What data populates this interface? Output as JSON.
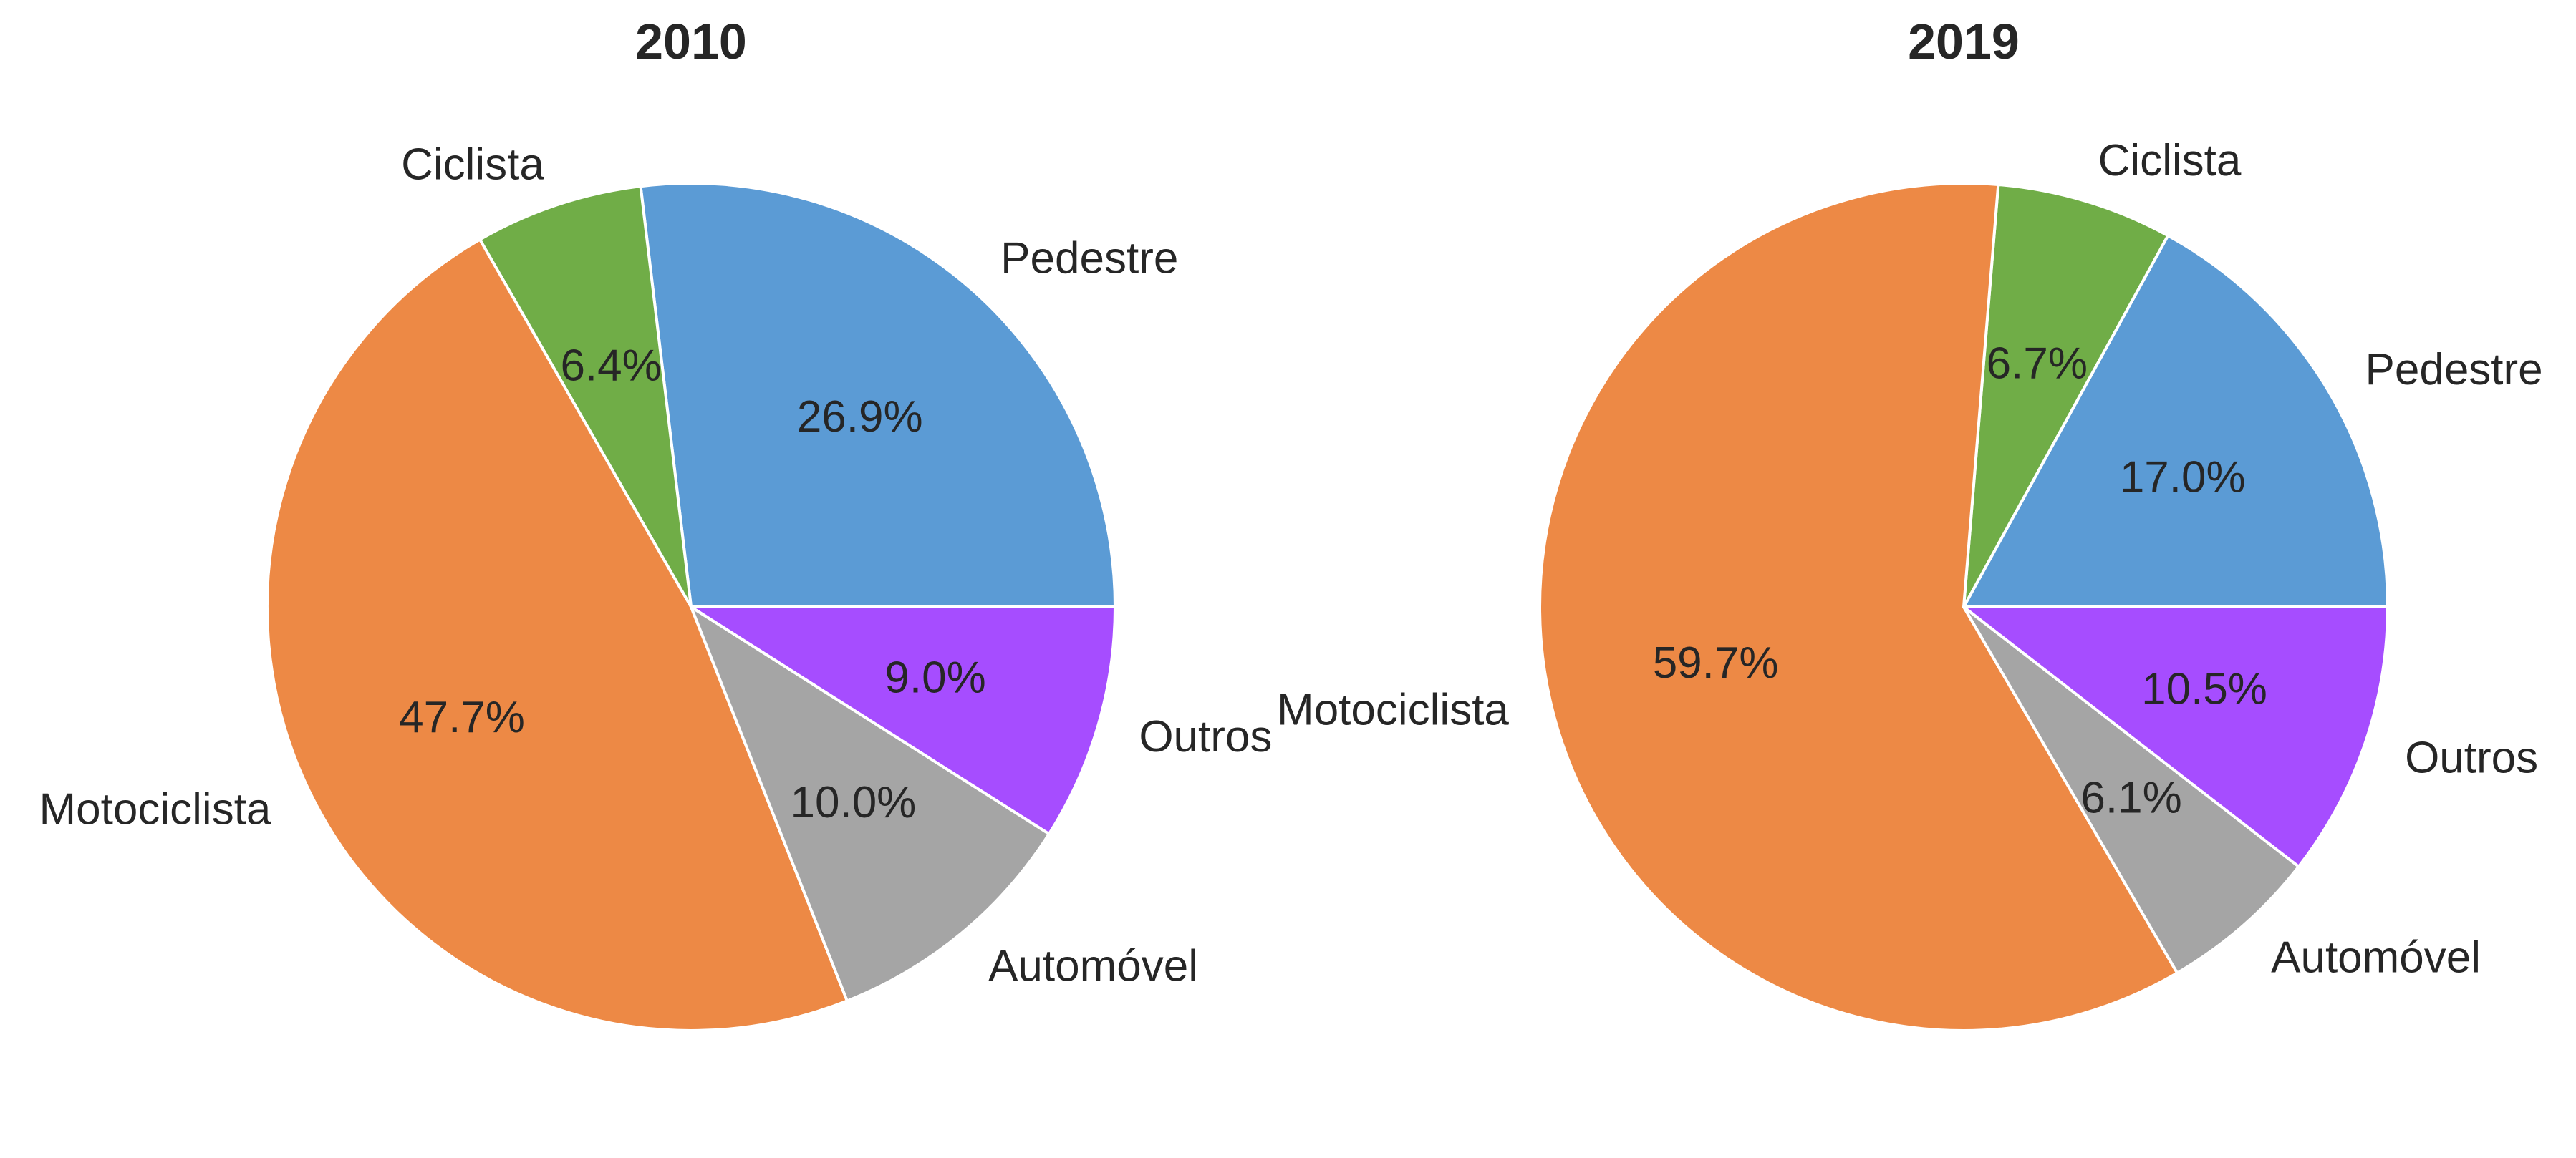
{
  "chart_data": [
    {
      "type": "pie",
      "title": "2010",
      "start_angle_deg": 0,
      "direction": "counterclockwise",
      "slices": [
        {
          "label": "Pedestre",
          "value": 26.9,
          "pct_label": "26.9%",
          "color": "#5b9bd5"
        },
        {
          "label": "Ciclista",
          "value": 6.4,
          "pct_label": "6.4%",
          "color": "#70ad47"
        },
        {
          "label": "Motociclista",
          "value": 47.7,
          "pct_label": "47.7%",
          "color": "#ed8945"
        },
        {
          "label": "Automóvel",
          "value": 10.0,
          "pct_label": "10.0%",
          "color": "#a5a5a5"
        },
        {
          "label": "Outros",
          "value": 9.0,
          "pct_label": "9.0%",
          "color": "#a64dff"
        }
      ]
    },
    {
      "type": "pie",
      "title": "2019",
      "start_angle_deg": 0,
      "direction": "counterclockwise",
      "slices": [
        {
          "label": "Pedestre",
          "value": 17.0,
          "pct_label": "17.0%",
          "color": "#5b9bd5"
        },
        {
          "label": "Ciclista",
          "value": 6.7,
          "pct_label": "6.7%",
          "color": "#70ad47"
        },
        {
          "label": "Motociclista",
          "value": 59.7,
          "pct_label": "59.7%",
          "color": "#ed8945"
        },
        {
          "label": "Automóvel",
          "value": 6.1,
          "pct_label": "6.1%",
          "color": "#a5a5a5"
        },
        {
          "label": "Outros",
          "value": 10.5,
          "pct_label": "10.5%",
          "color": "#a64dff"
        }
      ]
    }
  ]
}
